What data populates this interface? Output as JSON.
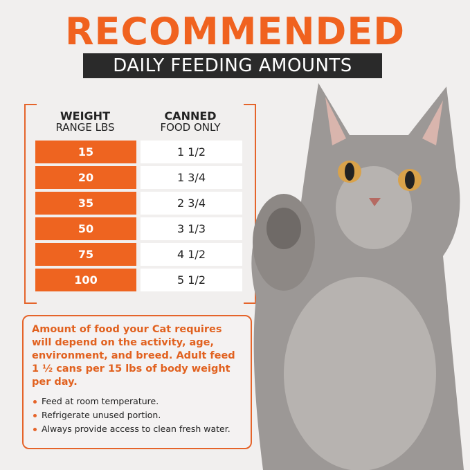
{
  "title": "RECOMMENDED",
  "subtitle": "DAILY FEEDING AMOUNTS",
  "table": {
    "headers": [
      {
        "bold": "WEIGHT",
        "sub": "RANGE LBS"
      },
      {
        "bold": "CANNED",
        "sub": "FOOD ONLY"
      }
    ],
    "rows": [
      {
        "weight": "15",
        "amount": "1 1/2"
      },
      {
        "weight": "20",
        "amount": "1 3/4"
      },
      {
        "weight": "35",
        "amount": "2 3/4"
      },
      {
        "weight": "50",
        "amount": "3 1/3"
      },
      {
        "weight": "75",
        "amount": "4 1/2"
      },
      {
        "weight": "100",
        "amount": "5 1/2"
      }
    ]
  },
  "info": {
    "lead": "Amount of food your Cat requires will depend on the activity, age, environment, and breed. Adult feed 1 ½ cans per 15 lbs of body weight per day.",
    "bullets": [
      "Feed at room temperature.",
      "Refrigerate unused portion.",
      "Always provide access to clean fresh water."
    ]
  },
  "colors": {
    "accent": "#ee6420",
    "dark": "#2a2a2a",
    "background": "#f1efee"
  }
}
